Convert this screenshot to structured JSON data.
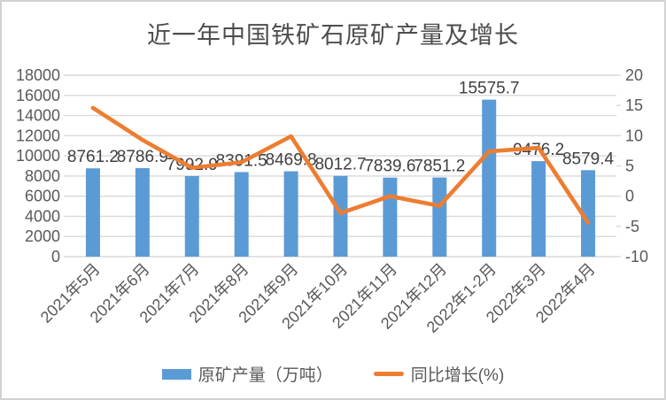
{
  "chart_data": {
    "type": "combo-bar-line",
    "title": "近一年中国铁矿石原矿产量及增长",
    "categories": [
      "2021年5月",
      "2021年6月",
      "2021年7月",
      "2021年8月",
      "2021年9月",
      "2021年10月",
      "2021年11月",
      "2021年12月",
      "2022年1-2月",
      "2022年3月",
      "2022年4月"
    ],
    "series": [
      {
        "name": "原矿产量（万吨）",
        "type": "bar",
        "axis": "left",
        "color": "#5B9BD5",
        "values": [
          8761.2,
          8786.9,
          7992.9,
          8391.5,
          8469.8,
          8012.7,
          7839.6,
          7851.2,
          15575.7,
          9476.2,
          8579.4
        ],
        "data_labels": [
          "8761.2",
          "8786.9",
          "7992.9",
          "8391.5",
          "8469.8",
          "8012.7",
          "7839.6",
          "7851.2",
          "15575.7",
          "9476.2",
          "8579.4"
        ]
      },
      {
        "name": "同比增长(%)",
        "type": "line",
        "axis": "right",
        "color": "#ED7D31",
        "values": [
          14.6,
          9.3,
          4.7,
          5.6,
          9.9,
          -2.8,
          0.0,
          -1.6,
          7.4,
          8.0,
          -4.4
        ]
      }
    ],
    "left_axis": {
      "min": 0,
      "max": 18000,
      "step": 2000,
      "tick_labels": [
        "0",
        "2000",
        "4000",
        "6000",
        "8000",
        "10000",
        "12000",
        "14000",
        "16000",
        "18000"
      ]
    },
    "right_axis": {
      "min": -10,
      "max": 20,
      "step": 5,
      "tick_labels": [
        "-10",
        "-5",
        "0",
        "5",
        "10",
        "15",
        "20"
      ]
    },
    "grid": true,
    "legend_position": "bottom",
    "styles": {
      "grid_color": "#d9d9d9",
      "axis_text_color": "#595959",
      "data_label_color": "#404040",
      "title_color": "#4d4d4d",
      "background": "#ffffff",
      "frame_border": "#d2d2d2"
    }
  }
}
